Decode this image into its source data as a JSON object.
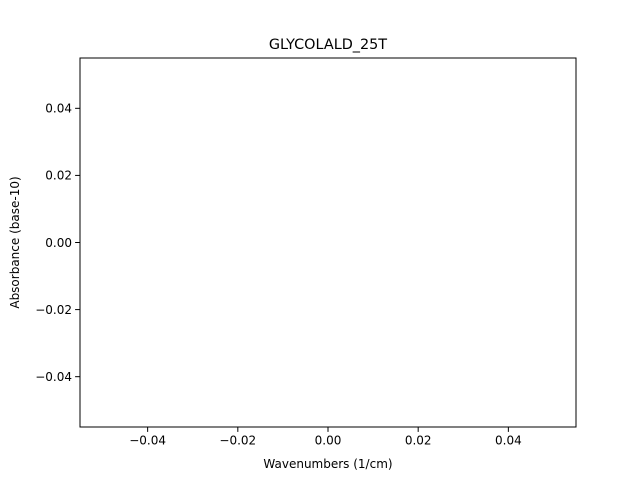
{
  "chart_data": {
    "type": "line",
    "title": "GLYCOLALD_25T",
    "xlabel": "Wavenumbers (1/cm)",
    "ylabel": "Absorbance (base-10)",
    "xlim": [
      -0.055,
      0.055
    ],
    "ylim": [
      -0.055,
      0.055
    ],
    "xticks": [
      -0.04,
      -0.02,
      0.0,
      0.02,
      0.04
    ],
    "xtick_labels": [
      "−0.04",
      "−0.02",
      "0.00",
      "0.02",
      "0.04"
    ],
    "yticks": [
      -0.04,
      -0.02,
      0.0,
      0.02,
      0.04
    ],
    "ytick_labels": [
      "−0.04",
      "−0.02",
      "0.00",
      "0.02",
      "0.04"
    ],
    "series": [],
    "grid": false,
    "legend": "none"
  }
}
